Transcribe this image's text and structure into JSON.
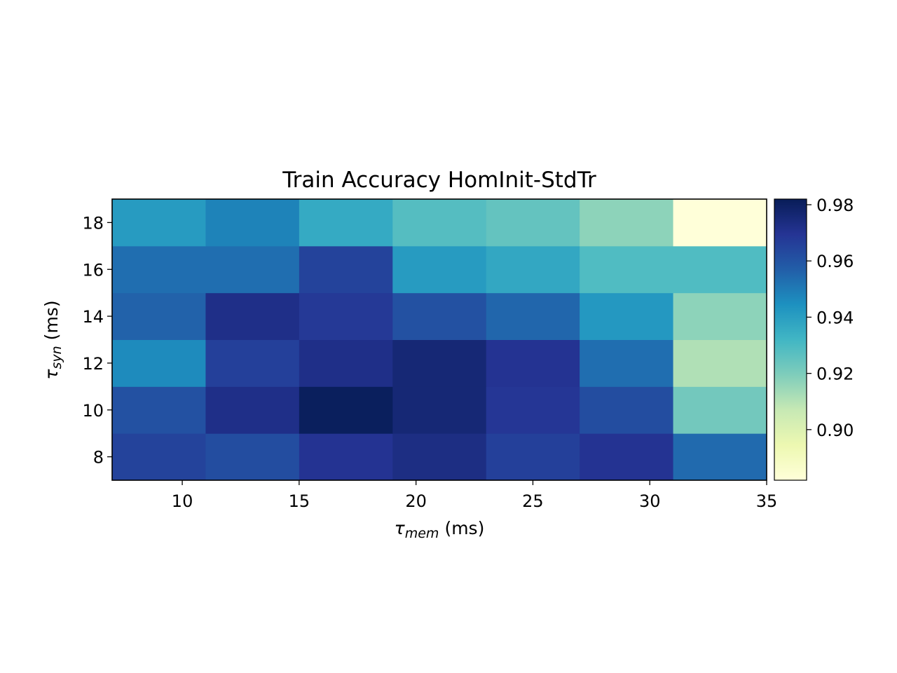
{
  "chart_data": {
    "type": "heatmap",
    "title": "Train Accuracy HomInit-StdTr",
    "xlabel": {
      "symbol": "τ",
      "sub": "mem",
      "unit": "(ms)"
    },
    "ylabel": {
      "symbol": "τ",
      "sub": "syn",
      "unit": "(ms)"
    },
    "x": [
      9,
      13,
      17,
      21,
      25,
      29,
      33
    ],
    "y": [
      8,
      10,
      12,
      14,
      16,
      18
    ],
    "xlim": [
      7,
      35
    ],
    "ylim": [
      7,
      19
    ],
    "xticks": [
      10,
      15,
      20,
      25,
      30,
      35
    ],
    "yticks": [
      8,
      10,
      12,
      14,
      16,
      18
    ],
    "colormap": "YlGnBu",
    "color_range": [
      0.882,
      0.982
    ],
    "colorbar_ticks": [
      0.9,
      0.92,
      0.94,
      0.96,
      0.98
    ],
    "values": [
      [
        0.965,
        0.962,
        0.97,
        0.973,
        0.966,
        0.97,
        0.954
      ],
      [
        0.961,
        0.972,
        0.981,
        0.976,
        0.969,
        0.962,
        0.922
      ],
      [
        0.946,
        0.966,
        0.972,
        0.976,
        0.97,
        0.953,
        0.911
      ],
      [
        0.956,
        0.972,
        0.968,
        0.961,
        0.955,
        0.942,
        0.917
      ],
      [
        0.953,
        0.953,
        0.965,
        0.941,
        0.937,
        0.929,
        0.929
      ],
      [
        0.941,
        0.948,
        0.936,
        0.928,
        0.925,
        0.917,
        0.882
      ]
    ]
  }
}
